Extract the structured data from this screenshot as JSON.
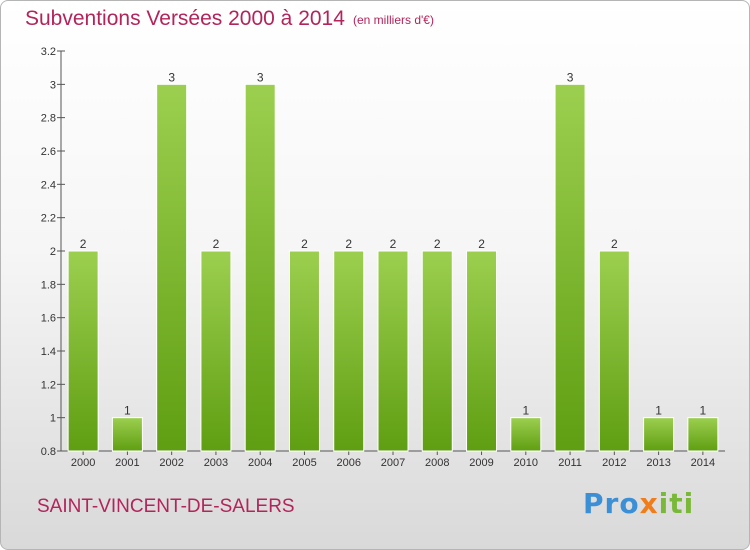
{
  "header": {
    "title": "Subventions Versées 2000 à 2014",
    "subtitle": "(en milliers d'€)"
  },
  "footer": {
    "commune": "SAINT-VINCENT-DE-SALERS",
    "brand_parts": [
      "Pro",
      "x",
      "iti"
    ]
  },
  "colors": {
    "accent": "#b3245a",
    "bar_top": "#9ccf4f",
    "bar_bottom": "#5f9e12",
    "brand_blue": "#3a8fd6",
    "brand_orange": "#f07d1a",
    "brand_green": "#7ab83a"
  },
  "chart_data": {
    "type": "bar",
    "title": "Subventions Versées 2000 à 2014",
    "subtitle": "(en milliers d'€)",
    "xlabel": "",
    "ylabel": "",
    "categories": [
      "2000",
      "2001",
      "2002",
      "2003",
      "2004",
      "2005",
      "2006",
      "2007",
      "2008",
      "2009",
      "2010",
      "2011",
      "2012",
      "2013",
      "2014"
    ],
    "values": [
      2,
      1,
      3,
      2,
      3,
      2,
      2,
      2,
      2,
      2,
      1,
      3,
      2,
      1,
      1
    ],
    "value_labels": [
      "2",
      "1",
      "3",
      "2",
      "3",
      "2",
      "2",
      "2",
      "2",
      "2",
      "1",
      "3",
      "2",
      "1",
      "1"
    ],
    "ylim": [
      0.8,
      3.2
    ],
    "y_ticks": [
      0.8,
      1,
      1.2,
      1.4,
      1.6,
      1.8,
      2,
      2.2,
      2.4,
      2.6,
      2.8,
      3,
      3.2
    ],
    "y_tick_labels": [
      "0.8",
      "1",
      "1.2",
      "1.4",
      "1.6",
      "1.8",
      "2",
      "2.2",
      "2.4",
      "2.6",
      "2.8",
      "3",
      "3.2"
    ],
    "grid": false,
    "legend": "none"
  }
}
